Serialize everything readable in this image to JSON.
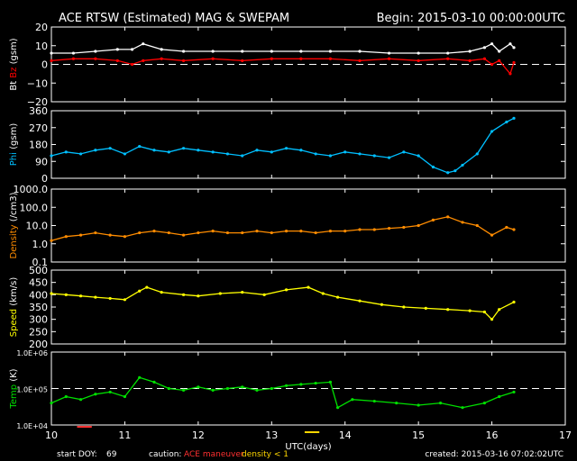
{
  "header": {
    "title": "ACE RTSW (Estimated) MAG & SWEPAM",
    "begin": "Begin: 2015-03-10 00:00:00UTC"
  },
  "footer": {
    "start_doy_label": "start DOY:",
    "start_doy_value": "69",
    "caution_label": "caution:",
    "caution_maneuver": "ACE maneuver",
    "caution_density": "density < 1",
    "created": "created: 2015-03-16 07:02:02UTC"
  },
  "colors": {
    "background": "#000000",
    "axes": "#ffffff",
    "bt": "#ffffff",
    "bz": "#ff0000",
    "phi": "#00bfff",
    "density": "#ff8c00",
    "speed": "#ffff00",
    "temp": "#00e000",
    "maneuver": "#ff3030",
    "density_low": "#ffd700"
  },
  "chart_data": [
    {
      "type": "line",
      "panel": "mag",
      "ylabel_parts": [
        "Bt",
        "Bz",
        "(gsm)"
      ],
      "yticks": [
        "20",
        "10",
        "0",
        "−10",
        "−20"
      ],
      "ylim": [
        -20,
        20
      ],
      "reference_line": 0,
      "x_unit": "days",
      "series": [
        {
          "name": "Bt",
          "color": "#ffffff",
          "x": [
            10.0,
            10.3,
            10.6,
            10.9,
            11.1,
            11.25,
            11.5,
            11.8,
            12.2,
            12.6,
            13.0,
            13.4,
            13.8,
            14.2,
            14.6,
            15.0,
            15.4,
            15.7,
            15.9,
            16.0,
            16.1,
            16.25,
            16.3
          ],
          "y": [
            6,
            6,
            7,
            8,
            8,
            11,
            8,
            7,
            7,
            7,
            7,
            7,
            7,
            7,
            6,
            6,
            6,
            7,
            9,
            11,
            7,
            11,
            9
          ]
        },
        {
          "name": "Bz",
          "color": "#ff0000",
          "x": [
            10.0,
            10.3,
            10.6,
            10.9,
            11.1,
            11.25,
            11.5,
            11.8,
            12.2,
            12.6,
            13.0,
            13.4,
            13.8,
            14.2,
            14.6,
            15.0,
            15.4,
            15.7,
            15.9,
            16.0,
            16.1,
            16.25,
            16.3
          ],
          "y": [
            2,
            3,
            3,
            2,
            0,
            2,
            3,
            2,
            3,
            2,
            3,
            3,
            3,
            2,
            3,
            2,
            3,
            2,
            3,
            0,
            2,
            -5,
            1
          ]
        }
      ]
    },
    {
      "type": "scatter",
      "panel": "phi",
      "ylabel_parts": [
        "Phi",
        "(gsm)"
      ],
      "yticks": [
        "360",
        "270",
        "180",
        "90",
        "0"
      ],
      "ylim": [
        0,
        360
      ],
      "x_unit": "days",
      "series": [
        {
          "name": "Phi",
          "color": "#00bfff",
          "x": [
            10.0,
            10.2,
            10.4,
            10.6,
            10.8,
            11.0,
            11.2,
            11.4,
            11.6,
            11.8,
            12.0,
            12.2,
            12.4,
            12.6,
            12.8,
            13.0,
            13.2,
            13.4,
            13.6,
            13.8,
            14.0,
            14.2,
            14.4,
            14.6,
            14.8,
            15.0,
            15.2,
            15.4,
            15.5,
            15.6,
            15.8,
            16.0,
            16.2,
            16.3
          ],
          "y": [
            120,
            140,
            130,
            150,
            160,
            130,
            170,
            150,
            140,
            160,
            150,
            140,
            130,
            120,
            150,
            140,
            160,
            150,
            130,
            120,
            140,
            130,
            120,
            110,
            140,
            120,
            60,
            30,
            40,
            70,
            130,
            250,
            300,
            320
          ]
        }
      ]
    },
    {
      "type": "scatter",
      "panel": "density",
      "ylabel_parts": [
        "Density",
        "(/cm3)"
      ],
      "yticks": [
        "1000.0",
        "100.0",
        "10.0",
        "1.0",
        "0.1"
      ],
      "ylim": [
        0.1,
        1000
      ],
      "log_scale": true,
      "x_unit": "days",
      "series": [
        {
          "name": "Density",
          "color": "#ff8c00",
          "x": [
            10.0,
            10.2,
            10.4,
            10.6,
            10.8,
            11.0,
            11.2,
            11.4,
            11.6,
            11.8,
            12.0,
            12.2,
            12.4,
            12.6,
            12.8,
            13.0,
            13.2,
            13.4,
            13.6,
            13.8,
            14.0,
            14.2,
            14.4,
            14.6,
            14.8,
            15.0,
            15.2,
            15.4,
            15.6,
            15.8,
            16.0,
            16.2,
            16.3
          ],
          "y": [
            1.5,
            2.5,
            3,
            4,
            3,
            2.5,
            4,
            5,
            4,
            3,
            4,
            5,
            4,
            4,
            5,
            4,
            5,
            5,
            4,
            5,
            5,
            6,
            6,
            7,
            8,
            10,
            20,
            30,
            15,
            10,
            3,
            8,
            6
          ]
        }
      ]
    },
    {
      "type": "scatter",
      "panel": "speed",
      "ylabel_parts": [
        "Speed",
        "(km/s)"
      ],
      "yticks": [
        "500",
        "450",
        "400",
        "350",
        "300",
        "250",
        "200"
      ],
      "ylim": [
        200,
        500
      ],
      "x_unit": "days",
      "series": [
        {
          "name": "Speed",
          "color": "#ffff00",
          "x": [
            10.0,
            10.2,
            10.4,
            10.6,
            10.8,
            11.0,
            11.2,
            11.3,
            11.5,
            11.8,
            12.0,
            12.3,
            12.6,
            12.9,
            13.2,
            13.5,
            13.7,
            13.9,
            14.2,
            14.5,
            14.8,
            15.1,
            15.4,
            15.7,
            15.9,
            16.0,
            16.1,
            16.3
          ],
          "y": [
            405,
            400,
            395,
            390,
            385,
            380,
            415,
            430,
            410,
            400,
            395,
            405,
            410,
            400,
            420,
            430,
            405,
            390,
            375,
            360,
            350,
            345,
            340,
            335,
            330,
            300,
            340,
            370
          ]
        }
      ]
    },
    {
      "type": "scatter",
      "panel": "temp",
      "ylabel_parts": [
        "Temp",
        "(K)"
      ],
      "yticks": [
        "1.0E+06",
        "1.0E+05",
        "1.0E+04"
      ],
      "ylim": [
        10000,
        1000000
      ],
      "log_scale": true,
      "reference_line": 100000,
      "x_unit": "days",
      "xlabel": "UTC(days)",
      "xticks": [
        "10",
        "11",
        "12",
        "13",
        "14",
        "15",
        "16",
        "17"
      ],
      "xlim": [
        10,
        17
      ],
      "series": [
        {
          "name": "Temp",
          "color": "#00e000",
          "x": [
            10.0,
            10.2,
            10.4,
            10.6,
            10.8,
            11.0,
            11.2,
            11.4,
            11.6,
            11.8,
            12.0,
            12.2,
            12.4,
            12.6,
            12.8,
            13.0,
            13.2,
            13.4,
            13.6,
            13.8,
            13.9,
            14.1,
            14.4,
            14.7,
            15.0,
            15.3,
            15.6,
            15.9,
            16.1,
            16.3
          ],
          "y": [
            40000,
            60000,
            50000,
            70000,
            80000,
            60000,
            200000,
            150000,
            100000,
            90000,
            110000,
            90000,
            100000,
            110000,
            90000,
            100000,
            120000,
            130000,
            140000,
            150000,
            30000,
            50000,
            45000,
            40000,
            35000,
            40000,
            30000,
            40000,
            60000,
            80000
          ]
        }
      ]
    }
  ]
}
